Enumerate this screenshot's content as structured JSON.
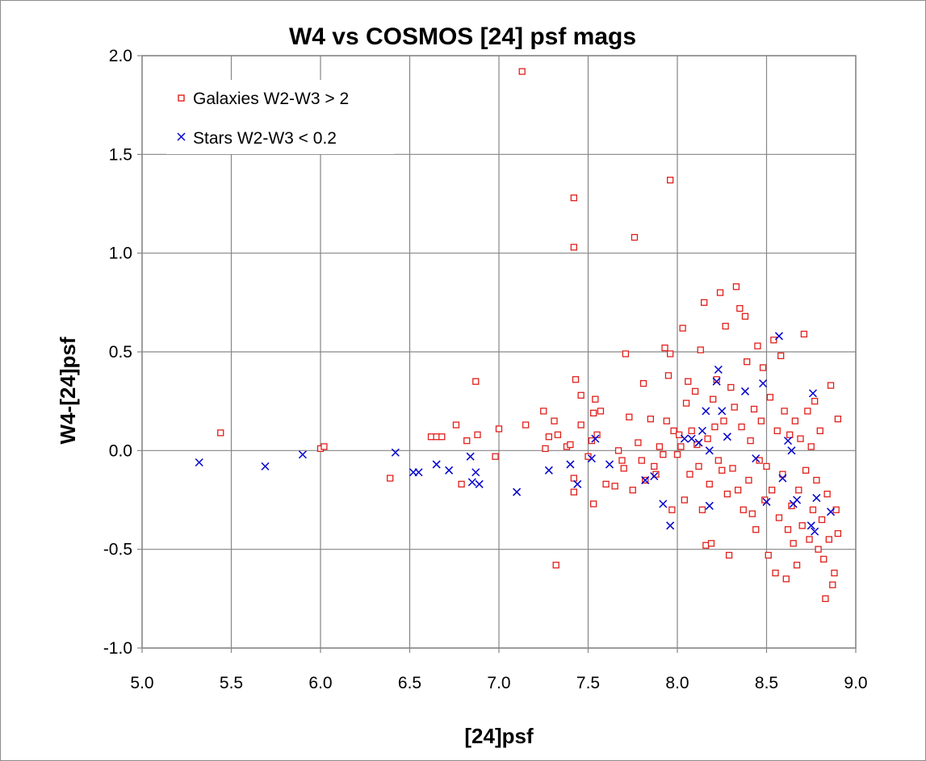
{
  "chart_data": {
    "type": "scatter",
    "title": "W4 vs COSMOS [24] psf mags",
    "xlabel": "[24]psf",
    "ylabel": "W4-[24]psf",
    "xlim": [
      5.0,
      9.0
    ],
    "ylim": [
      -1.0,
      2.0
    ],
    "xticks": [
      "5.0",
      "5.5",
      "6.0",
      "6.5",
      "7.0",
      "7.5",
      "8.0",
      "8.5",
      "9.0"
    ],
    "yticks": [
      "2.0",
      "1.5",
      "1.0",
      "0.5",
      "0.0",
      "-0.5",
      "-1.0"
    ],
    "grid": true,
    "legend_position": "top-left",
    "series": [
      {
        "name": "Galaxies W2-W3 > 2",
        "marker": "square",
        "color": "#e0201b",
        "points": [
          [
            5.44,
            0.09
          ],
          [
            6.0,
            0.01
          ],
          [
            6.02,
            0.02
          ],
          [
            6.39,
            -0.14
          ],
          [
            6.62,
            0.07
          ],
          [
            6.65,
            0.07
          ],
          [
            6.68,
            0.07
          ],
          [
            6.76,
            0.13
          ],
          [
            6.79,
            -0.17
          ],
          [
            6.82,
            0.05
          ],
          [
            6.87,
            0.35
          ],
          [
            6.88,
            0.08
          ],
          [
            6.98,
            -0.03
          ],
          [
            7.0,
            0.11
          ],
          [
            7.13,
            1.92
          ],
          [
            7.15,
            0.13
          ],
          [
            7.25,
            0.2
          ],
          [
            7.26,
            0.01
          ],
          [
            7.28,
            0.07
          ],
          [
            7.31,
            0.15
          ],
          [
            7.32,
            -0.58
          ],
          [
            7.33,
            0.08
          ],
          [
            7.38,
            0.02
          ],
          [
            7.4,
            0.03
          ],
          [
            7.42,
            1.28
          ],
          [
            7.42,
            1.03
          ],
          [
            7.42,
            -0.14
          ],
          [
            7.42,
            -0.21
          ],
          [
            7.43,
            0.36
          ],
          [
            7.46,
            0.13
          ],
          [
            7.46,
            0.28
          ],
          [
            7.5,
            -0.03
          ],
          [
            7.52,
            0.05
          ],
          [
            7.53,
            0.19
          ],
          [
            7.53,
            -0.27
          ],
          [
            7.54,
            0.26
          ],
          [
            7.55,
            0.08
          ],
          [
            7.57,
            0.2
          ],
          [
            7.6,
            -0.17
          ],
          [
            7.65,
            -0.18
          ],
          [
            7.67,
            0.0
          ],
          [
            7.69,
            -0.05
          ],
          [
            7.7,
            -0.09
          ],
          [
            7.71,
            0.49
          ],
          [
            7.73,
            0.17
          ],
          [
            7.75,
            -0.2
          ],
          [
            7.76,
            1.08
          ],
          [
            7.78,
            0.04
          ],
          [
            7.8,
            -0.05
          ],
          [
            7.81,
            0.34
          ],
          [
            7.82,
            -0.15
          ],
          [
            7.85,
            0.16
          ],
          [
            7.87,
            -0.08
          ],
          [
            7.88,
            -0.12
          ],
          [
            7.9,
            0.02
          ],
          [
            7.92,
            -0.02
          ],
          [
            7.93,
            0.52
          ],
          [
            7.94,
            0.15
          ],
          [
            7.95,
            0.38
          ],
          [
            7.96,
            1.37
          ],
          [
            7.96,
            0.49
          ],
          [
            7.97,
            -0.3
          ],
          [
            7.98,
            0.1
          ],
          [
            8.0,
            -0.02
          ],
          [
            8.01,
            0.08
          ],
          [
            8.02,
            0.02
          ],
          [
            8.03,
            0.62
          ],
          [
            8.04,
            -0.25
          ],
          [
            8.05,
            0.24
          ],
          [
            8.06,
            0.35
          ],
          [
            8.07,
            -0.12
          ],
          [
            8.08,
            0.1
          ],
          [
            8.1,
            0.3
          ],
          [
            8.11,
            0.03
          ],
          [
            8.12,
            -0.08
          ],
          [
            8.13,
            0.51
          ],
          [
            8.14,
            -0.3
          ],
          [
            8.15,
            0.75
          ],
          [
            8.16,
            -0.48
          ],
          [
            8.17,
            0.06
          ],
          [
            8.18,
            -0.17
          ],
          [
            8.19,
            -0.47
          ],
          [
            8.2,
            0.26
          ],
          [
            8.21,
            0.12
          ],
          [
            8.22,
            0.36
          ],
          [
            8.23,
            -0.05
          ],
          [
            8.24,
            0.8
          ],
          [
            8.25,
            -0.1
          ],
          [
            8.26,
            0.15
          ],
          [
            8.27,
            0.63
          ],
          [
            8.28,
            -0.22
          ],
          [
            8.29,
            -0.53
          ],
          [
            8.3,
            0.32
          ],
          [
            8.31,
            -0.09
          ],
          [
            8.32,
            0.22
          ],
          [
            8.33,
            0.83
          ],
          [
            8.34,
            -0.2
          ],
          [
            8.35,
            0.72
          ],
          [
            8.36,
            0.12
          ],
          [
            8.37,
            -0.3
          ],
          [
            8.38,
            0.68
          ],
          [
            8.39,
            0.45
          ],
          [
            8.4,
            -0.15
          ],
          [
            8.41,
            0.05
          ],
          [
            8.42,
            -0.32
          ],
          [
            8.43,
            0.21
          ],
          [
            8.44,
            -0.4
          ],
          [
            8.45,
            0.53
          ],
          [
            8.46,
            -0.05
          ],
          [
            8.47,
            0.15
          ],
          [
            8.48,
            0.42
          ],
          [
            8.49,
            -0.25
          ],
          [
            8.5,
            -0.08
          ],
          [
            8.51,
            -0.53
          ],
          [
            8.52,
            0.27
          ],
          [
            8.53,
            -0.2
          ],
          [
            8.54,
            0.56
          ],
          [
            8.55,
            -0.62
          ],
          [
            8.56,
            0.1
          ],
          [
            8.57,
            -0.34
          ],
          [
            8.58,
            0.48
          ],
          [
            8.59,
            -0.12
          ],
          [
            8.6,
            0.2
          ],
          [
            8.61,
            -0.65
          ],
          [
            8.62,
            -0.4
          ],
          [
            8.63,
            0.08
          ],
          [
            8.64,
            -0.28
          ],
          [
            8.65,
            -0.47
          ],
          [
            8.66,
            0.15
          ],
          [
            8.67,
            -0.58
          ],
          [
            8.68,
            -0.2
          ],
          [
            8.69,
            0.06
          ],
          [
            8.7,
            -0.38
          ],
          [
            8.71,
            0.59
          ],
          [
            8.72,
            -0.1
          ],
          [
            8.73,
            0.2
          ],
          [
            8.74,
            -0.45
          ],
          [
            8.75,
            0.02
          ],
          [
            8.76,
            -0.3
          ],
          [
            8.77,
            0.25
          ],
          [
            8.78,
            -0.15
          ],
          [
            8.79,
            -0.5
          ],
          [
            8.8,
            0.1
          ],
          [
            8.81,
            -0.35
          ],
          [
            8.82,
            -0.55
          ],
          [
            8.83,
            -0.75
          ],
          [
            8.84,
            -0.22
          ],
          [
            8.85,
            -0.45
          ],
          [
            8.86,
            0.33
          ],
          [
            8.87,
            -0.68
          ],
          [
            8.88,
            -0.62
          ],
          [
            8.89,
            -0.3
          ],
          [
            8.9,
            0.16
          ],
          [
            8.9,
            -0.42
          ]
        ]
      },
      {
        "name": "Stars W2-W3 < 0.2",
        "marker": "x",
        "color": "#0000cc",
        "points": [
          [
            5.32,
            -0.06
          ],
          [
            5.69,
            -0.08
          ],
          [
            5.9,
            -0.02
          ],
          [
            6.42,
            -0.01
          ],
          [
            6.52,
            -0.11
          ],
          [
            6.55,
            -0.11
          ],
          [
            6.65,
            -0.07
          ],
          [
            6.72,
            -0.1
          ],
          [
            6.84,
            -0.03
          ],
          [
            6.85,
            -0.16
          ],
          [
            6.87,
            -0.11
          ],
          [
            6.89,
            -0.17
          ],
          [
            7.1,
            -0.21
          ],
          [
            7.28,
            -0.1
          ],
          [
            7.4,
            -0.07
          ],
          [
            7.44,
            -0.17
          ],
          [
            7.52,
            -0.04
          ],
          [
            7.54,
            0.06
          ],
          [
            7.62,
            -0.07
          ],
          [
            7.82,
            -0.15
          ],
          [
            7.87,
            -0.13
          ],
          [
            7.92,
            -0.27
          ],
          [
            7.96,
            -0.38
          ],
          [
            8.04,
            0.06
          ],
          [
            8.08,
            0.06
          ],
          [
            8.12,
            0.04
          ],
          [
            8.14,
            0.1
          ],
          [
            8.16,
            0.2
          ],
          [
            8.18,
            -0.28
          ],
          [
            8.18,
            0.0
          ],
          [
            8.22,
            0.35
          ],
          [
            8.23,
            0.41
          ],
          [
            8.25,
            0.2
          ],
          [
            8.28,
            0.07
          ],
          [
            8.38,
            0.3
          ],
          [
            8.44,
            -0.04
          ],
          [
            8.48,
            0.34
          ],
          [
            8.5,
            -0.26
          ],
          [
            8.57,
            0.58
          ],
          [
            8.59,
            -0.14
          ],
          [
            8.62,
            0.05
          ],
          [
            8.64,
            0.0
          ],
          [
            8.65,
            -0.27
          ],
          [
            8.67,
            -0.25
          ],
          [
            8.75,
            -0.38
          ],
          [
            8.76,
            0.29
          ],
          [
            8.77,
            -0.41
          ],
          [
            8.78,
            -0.24
          ],
          [
            8.86,
            -0.31
          ]
        ]
      }
    ]
  }
}
